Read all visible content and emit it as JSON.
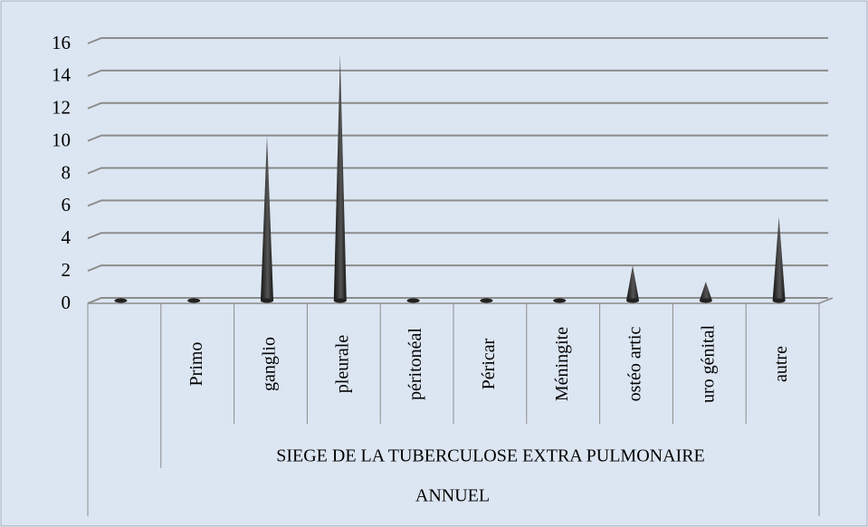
{
  "chart_data": {
    "type": "cone",
    "categories": [
      null,
      "Primo",
      "ganglio",
      "pleurale",
      "péritonéal",
      "Péricar",
      "Méningite",
      "ostéo artic",
      "uro génital",
      "autre"
    ],
    "values": [
      0,
      0,
      10,
      15,
      0,
      0,
      0,
      2,
      1,
      5
    ],
    "colors": [
      "#e8a33d",
      "#4f81bd",
      "#1f1f1f",
      "#1f1f1f",
      "#1f1f1f",
      "#4f81bd",
      "#1f1f1f",
      "#1f1f1f",
      "#1f1f1f",
      "#1f1f1f"
    ],
    "group_labels": [
      "SIEGE DE LA TUBERCULOSE EXTRA PULMONAIRE",
      "ANNUEL"
    ],
    "ylim": [
      0,
      16
    ],
    "yticks": [
      0,
      2,
      4,
      6,
      8,
      10,
      12,
      14,
      16
    ],
    "grid": true
  }
}
